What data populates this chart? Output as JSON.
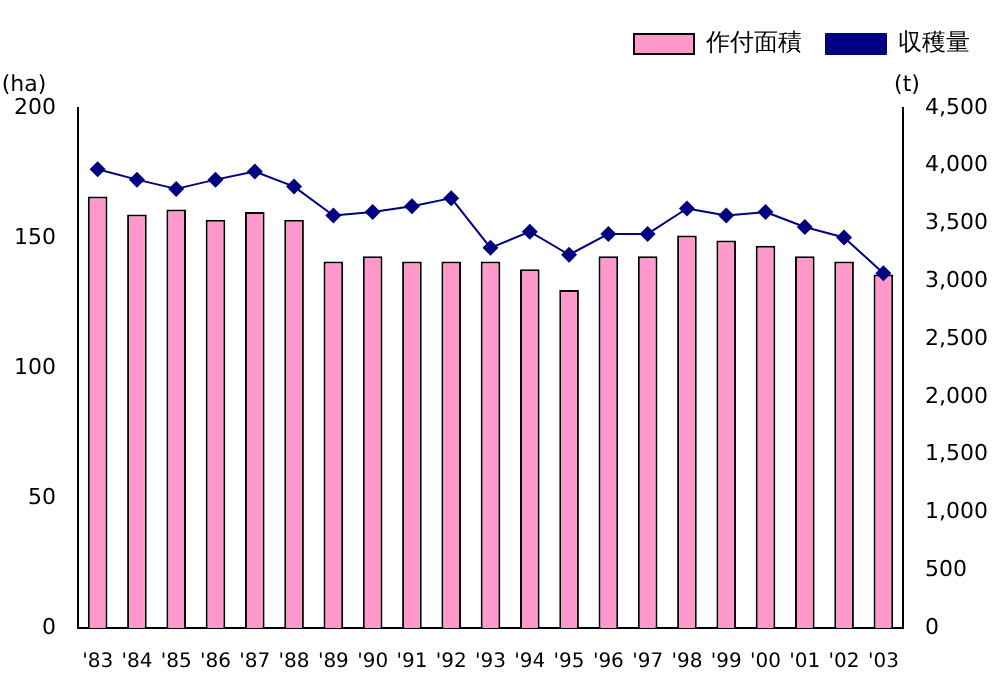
{
  "chart_data": {
    "type": "bar",
    "ylabel": "(ha)",
    "y2label": "(t)",
    "categories": [
      "'83",
      "'84",
      "'85",
      "'86",
      "'87",
      "'88",
      "'89",
      "'90",
      "'91",
      "'92",
      "'93",
      "'94",
      "'95",
      "'96",
      "'97",
      "'98",
      "'99",
      "'00",
      "'01",
      "'02",
      "'03"
    ],
    "series": [
      {
        "name": "作付面積",
        "color": "#ff99cc",
        "values": [
          166,
          159,
          161,
          157,
          160,
          157,
          141,
          143,
          141,
          141,
          141,
          138,
          130,
          143,
          143,
          151,
          149,
          147,
          143,
          141,
          136
        ]
      },
      {
        "name": "収穫量",
        "type": "line",
        "axis": "y2",
        "color": "#000080",
        "marker": "diamond",
        "values": [
          3970,
          3880,
          3800,
          3880,
          3950,
          3820,
          3570,
          3600,
          3650,
          3720,
          3290,
          3430,
          3230,
          3410,
          3410,
          3630,
          3570,
          3600,
          3470,
          3380,
          3070
        ]
      }
    ],
    "ylim": [
      0,
      200
    ],
    "yticks": [
      0,
      50,
      100,
      150,
      200
    ],
    "y2lim": [
      0,
      4500
    ],
    "y2ticks": [
      {
        "value": 0,
        "label": "0"
      },
      {
        "value": 500,
        "label": "500"
      },
      {
        "value": 1000,
        "label": "1,000"
      },
      {
        "value": 1500,
        "label": "1,500"
      },
      {
        "value": 2000,
        "label": "2,000"
      },
      {
        "value": 2500,
        "label": "2,500"
      },
      {
        "value": 3000,
        "label": "3,000"
      },
      {
        "value": 3500,
        "label": "3,500"
      },
      {
        "value": 4000,
        "label": "4,000"
      },
      {
        "value": 4500,
        "label": "4,500"
      }
    ],
    "grid": false,
    "legend": "top right"
  }
}
